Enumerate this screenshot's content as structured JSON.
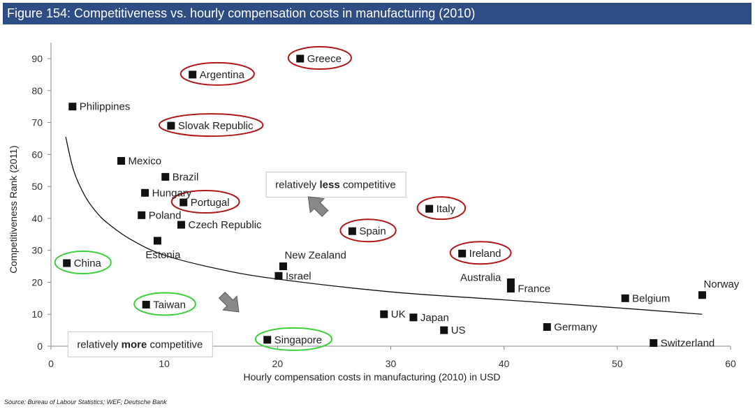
{
  "title": "Figure 154: Competitiveness vs. hourly compensation costs in manufacturing (2010)",
  "source": "Source: Bureau of Labour Statistics; WEF; Deutsche Bank",
  "colors": {
    "title_bg": "#2f4d85",
    "marker": "#111111",
    "red_oval": "#b01818",
    "green_oval": "#3ccf3c",
    "curve": "#111111",
    "arrow": "#888888"
  },
  "chart_data": {
    "type": "scatter",
    "title": "Figure 154: Competitiveness vs. hourly compensation costs in manufacturing (2010)",
    "xlabel": "Hourly compensation costs in manufacturing (2010) in USD",
    "ylabel": "Competitiveness Rank (2011)",
    "xlim": [
      0,
      60
    ],
    "ylim": [
      0,
      95
    ],
    "xticks": [
      0,
      10,
      20,
      30,
      40,
      50,
      60
    ],
    "yticks": [
      0,
      10,
      20,
      30,
      40,
      50,
      60,
      70,
      80,
      90
    ],
    "grid": false,
    "points": [
      {
        "label": "Philippines",
        "x": 1.9,
        "y": 75,
        "highlight": "none",
        "label_side": "right"
      },
      {
        "label": "Greece",
        "x": 22,
        "y": 90,
        "highlight": "red",
        "label_side": "right"
      },
      {
        "label": "Argentina",
        "x": 12.5,
        "y": 85,
        "highlight": "red",
        "label_side": "right"
      },
      {
        "label": "Slovak Republic",
        "x": 10.6,
        "y": 69,
        "highlight": "red",
        "label_side": "right"
      },
      {
        "label": "Mexico",
        "x": 6.2,
        "y": 58,
        "highlight": "none",
        "label_side": "right"
      },
      {
        "label": "Brazil",
        "x": 10.1,
        "y": 53,
        "highlight": "none",
        "label_side": "right"
      },
      {
        "label": "Hungary",
        "x": 8.3,
        "y": 48,
        "highlight": "none",
        "label_side": "right"
      },
      {
        "label": "Portugal",
        "x": 11.7,
        "y": 45,
        "highlight": "red",
        "label_side": "right"
      },
      {
        "label": "Poland",
        "x": 8,
        "y": 41,
        "highlight": "none",
        "label_side": "right"
      },
      {
        "label": "Czech Republic",
        "x": 11.5,
        "y": 38,
        "highlight": "none",
        "label_side": "right"
      },
      {
        "label": "Estonia",
        "x": 9.4,
        "y": 33,
        "highlight": "none",
        "label_side": "below"
      },
      {
        "label": "China",
        "x": 1.4,
        "y": 26,
        "highlight": "green",
        "label_side": "right"
      },
      {
        "label": "Taiwan",
        "x": 8.4,
        "y": 13,
        "highlight": "green",
        "label_side": "right"
      },
      {
        "label": "Singapore",
        "x": 19.1,
        "y": 2,
        "highlight": "green",
        "label_side": "right"
      },
      {
        "label": "New Zealand",
        "x": 20.5,
        "y": 25,
        "highlight": "none",
        "label_side": "above"
      },
      {
        "label": "Israel",
        "x": 20.1,
        "y": 22,
        "highlight": "none",
        "label_side": "right"
      },
      {
        "label": "Spain",
        "x": 26.6,
        "y": 36,
        "highlight": "red",
        "label_side": "right"
      },
      {
        "label": "Italy",
        "x": 33.4,
        "y": 43,
        "highlight": "red",
        "label_side": "right"
      },
      {
        "label": "Ireland",
        "x": 36.3,
        "y": 29,
        "highlight": "red",
        "label_side": "right"
      },
      {
        "label": "UK",
        "x": 29.4,
        "y": 10,
        "highlight": "none",
        "label_side": "right"
      },
      {
        "label": "Japan",
        "x": 32,
        "y": 9,
        "highlight": "none",
        "label_side": "right"
      },
      {
        "label": "US",
        "x": 34.7,
        "y": 5,
        "highlight": "none",
        "label_side": "right"
      },
      {
        "label": "Australia",
        "x": 40.6,
        "y": 20,
        "highlight": "none",
        "label_side": "left"
      },
      {
        "label": "France",
        "x": 40.6,
        "y": 18,
        "highlight": "none",
        "label_side": "right"
      },
      {
        "label": "Germany",
        "x": 43.8,
        "y": 6,
        "highlight": "none",
        "label_side": "right"
      },
      {
        "label": "Belgium",
        "x": 50.7,
        "y": 15,
        "highlight": "none",
        "label_side": "right"
      },
      {
        "label": "Norway",
        "x": 57.5,
        "y": 16,
        "highlight": "none",
        "label_side": "above"
      },
      {
        "label": "Switzerland",
        "x": 53.2,
        "y": 1,
        "highlight": "none",
        "label_side": "right"
      }
    ],
    "trendline": {
      "type": "power",
      "points": [
        [
          1.3,
          65.5
        ],
        [
          2,
          55
        ],
        [
          3,
          47
        ],
        [
          4,
          42
        ],
        [
          5,
          38.5
        ],
        [
          7,
          33.5
        ],
        [
          10,
          28.5
        ],
        [
          15,
          24
        ],
        [
          20,
          21
        ],
        [
          30,
          17
        ],
        [
          40,
          14.5
        ],
        [
          50,
          12
        ],
        [
          57.5,
          10
        ]
      ]
    },
    "annotations": [
      {
        "text_parts": [
          {
            "text": "relatively ",
            "bold": false
          },
          {
            "text": "less",
            "bold": true
          },
          {
            "text": " competitive",
            "bold": false
          }
        ],
        "x": 19,
        "y": 54.5,
        "arrow": "up-right",
        "arrow_x": 23.5,
        "arrow_y": 44
      },
      {
        "text_parts": [
          {
            "text": "relatively ",
            "bold": false
          },
          {
            "text": "more",
            "bold": true
          },
          {
            "text": " competitive",
            "bold": false
          }
        ],
        "x": 1.5,
        "y": 4.5,
        "arrow": "down-left",
        "arrow_x": 15.8,
        "arrow_y": 13.5
      }
    ]
  }
}
